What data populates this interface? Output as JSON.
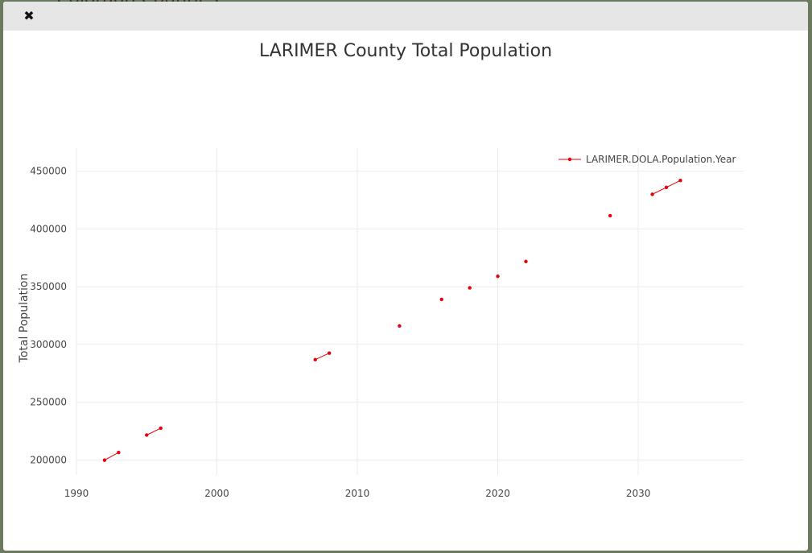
{
  "background": {
    "partial_title": "Colorado Counties"
  },
  "modal": {
    "close_glyph": "✖"
  },
  "chart_data": {
    "type": "line",
    "title": "LARIMER County Total Population",
    "xlabel": "",
    "ylabel": "Total Population",
    "xlim": [
      1990,
      2037.5
    ],
    "ylim": [
      187000,
      470000
    ],
    "xticks": [
      1990,
      2000,
      2010,
      2020,
      2030
    ],
    "yticks": [
      200000,
      250000,
      300000,
      350000,
      400000,
      450000
    ],
    "grid": true,
    "legend_position": "top-right",
    "color": "#e8000b",
    "series": [
      {
        "name": "LARIMER.DOLA.Population.Year",
        "segments": [
          [
            [
              1992,
              199800
            ],
            [
              1993,
              206500
            ]
          ],
          [
            [
              1995,
              221500
            ],
            [
              1996,
              227500
            ]
          ],
          [
            [
              2007,
              286800
            ],
            [
              2008,
              292500
            ]
          ],
          [
            [
              2013,
              316000
            ]
          ],
          [
            [
              2016,
              339000
            ]
          ],
          [
            [
              2018,
              349000
            ]
          ],
          [
            [
              2020,
              359000
            ]
          ],
          [
            [
              2022,
              371800
            ]
          ],
          [
            [
              2028,
              411500
            ]
          ],
          [
            [
              2031,
              430000
            ],
            [
              2032,
              436000
            ],
            [
              2033,
              442000
            ]
          ]
        ]
      }
    ]
  }
}
